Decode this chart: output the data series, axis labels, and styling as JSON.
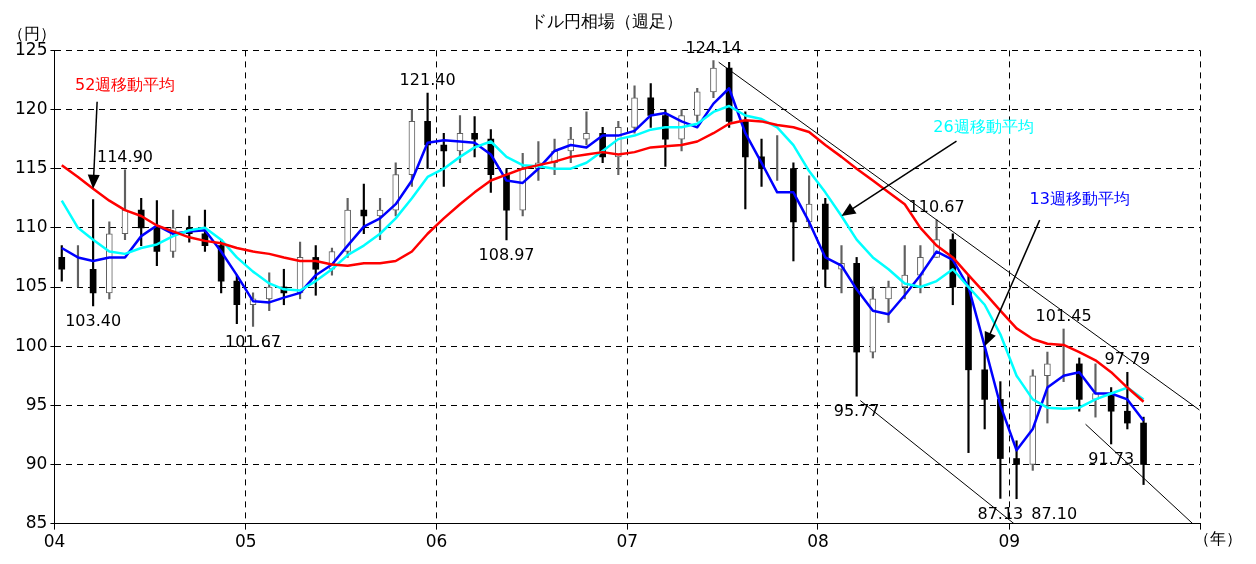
{
  "chart_data": {
    "type": "candlestick",
    "title": "ドル円相場（週足）",
    "ylabel": "（円）",
    "xlabel": "（年）",
    "x": [
      "2004-01-15",
      "2004-02-15",
      "2004-03-15",
      "2004-04-15",
      "2004-05-15",
      "2004-06-15",
      "2004-07-15",
      "2004-08-15",
      "2004-09-15",
      "2004-10-15",
      "2004-11-15",
      "2004-12-15",
      "2005-01-15",
      "2005-02-15",
      "2005-03-15",
      "2005-04-15",
      "2005-05-15",
      "2005-06-15",
      "2005-07-15",
      "2005-08-15",
      "2005-09-15",
      "2005-10-15",
      "2005-11-15",
      "2005-12-15",
      "2006-01-15",
      "2006-02-15",
      "2006-03-15",
      "2006-04-15",
      "2006-05-15",
      "2006-06-15",
      "2006-07-15",
      "2006-08-15",
      "2006-09-15",
      "2006-10-15",
      "2006-11-15",
      "2006-12-15",
      "2007-01-15",
      "2007-02-15",
      "2007-03-15",
      "2007-04-15",
      "2007-05-15",
      "2007-06-15",
      "2007-07-15",
      "2007-08-15",
      "2007-09-15",
      "2007-10-15",
      "2007-11-15",
      "2007-12-15",
      "2008-01-15",
      "2008-02-15",
      "2008-03-15",
      "2008-04-15",
      "2008-05-15",
      "2008-06-15",
      "2008-07-15",
      "2008-08-15",
      "2008-09-15",
      "2008-10-15",
      "2008-11-15",
      "2008-12-15",
      "2009-01-15",
      "2009-02-15",
      "2009-03-15",
      "2009-04-15",
      "2009-05-15",
      "2009-06-15",
      "2009-07-15",
      "2009-08-15",
      "2009-09-15"
    ],
    "ohlc": [
      [
        107.5,
        108.5,
        105.5,
        106.5
      ],
      [
        106.5,
        108.5,
        105,
        106.5
      ],
      [
        106.5,
        112.4,
        103.4,
        104.5
      ],
      [
        104.5,
        110.5,
        104,
        109.5
      ],
      [
        109.5,
        114.9,
        109,
        111.5
      ],
      [
        111.5,
        112.5,
        108.5,
        110
      ],
      [
        110,
        112.3,
        106.8,
        108
      ],
      [
        108,
        111.5,
        107.5,
        110
      ],
      [
        110,
        111,
        108.8,
        109.5
      ],
      [
        109.5,
        111.5,
        108,
        108.5
      ],
      [
        108.5,
        109,
        104.5,
        105.5
      ],
      [
        105.5,
        106,
        101.9,
        103.5
      ],
      [
        103.5,
        104.5,
        101.67,
        104
      ],
      [
        104,
        106.2,
        103,
        105
      ],
      [
        105,
        106.5,
        103.5,
        104.5
      ],
      [
        104.5,
        108.8,
        104,
        107.5
      ],
      [
        107.5,
        108.5,
        104.3,
        106.5
      ],
      [
        106.5,
        108.3,
        106,
        108
      ],
      [
        108,
        112.5,
        107.5,
        111.5
      ],
      [
        111.5,
        113.7,
        109.5,
        111
      ],
      [
        111,
        112.5,
        109,
        111.5
      ],
      [
        111.5,
        115.5,
        111,
        114.5
      ],
      [
        114.5,
        120,
        113.5,
        119
      ],
      [
        119,
        121.4,
        115,
        117
      ],
      [
        117,
        118,
        113.5,
        116.5
      ],
      [
        116.5,
        119.5,
        115.5,
        118
      ],
      [
        118,
        119.4,
        116,
        117.5
      ],
      [
        117.5,
        118.3,
        113,
        114.5
      ],
      [
        114.5,
        115,
        108.97,
        111.5
      ],
      [
        111.5,
        116.3,
        111,
        115
      ],
      [
        115,
        117.3,
        114,
        115.5
      ],
      [
        115.5,
        117.5,
        114.5,
        116.5
      ],
      [
        116.5,
        118.5,
        115.5,
        117.5
      ],
      [
        117.5,
        119.8,
        117,
        118
      ],
      [
        118,
        118.5,
        115.5,
        116
      ],
      [
        116,
        119,
        114.5,
        118.5
      ],
      [
        118.5,
        122,
        118,
        121
      ],
      [
        121,
        122.2,
        118.5,
        119.5
      ],
      [
        119.5,
        120,
        115.2,
        117.5
      ],
      [
        117.5,
        120,
        116.5,
        119.5
      ],
      [
        119.5,
        121.8,
        119,
        121.5
      ],
      [
        121.5,
        124.14,
        121,
        123.5
      ],
      [
        123.5,
        124,
        118.5,
        119
      ],
      [
        119,
        119.8,
        111.6,
        116
      ],
      [
        116,
        117.5,
        113.5,
        115
      ],
      [
        115,
        117.8,
        114,
        115
      ],
      [
        115,
        115.5,
        107.2,
        110.5
      ],
      [
        110.5,
        114.4,
        110,
        112
      ],
      [
        112,
        112.5,
        105,
        106.5
      ],
      [
        106.5,
        108.5,
        104.5,
        107
      ],
      [
        107,
        107.5,
        95.77,
        99.5
      ],
      [
        99.5,
        105,
        99,
        104
      ],
      [
        104,
        105.5,
        102,
        105
      ],
      [
        105,
        108.5,
        104,
        106
      ],
      [
        106,
        108.5,
        104.5,
        107.5
      ],
      [
        107.5,
        110.67,
        107.5,
        109
      ],
      [
        109,
        109.5,
        103.5,
        105
      ],
      [
        105,
        106,
        91,
        98
      ],
      [
        98,
        100,
        93,
        95.5
      ],
      [
        95.5,
        97,
        87.13,
        90.5
      ],
      [
        90.5,
        92,
        87.1,
        90
      ],
      [
        90,
        98,
        89.5,
        97.5
      ],
      [
        97.5,
        99.5,
        93.5,
        98.5
      ],
      [
        98.5,
        101.45,
        97,
        98.5
      ],
      [
        98.5,
        99,
        94.5,
        95.5
      ],
      [
        95.5,
        98.5,
        94,
        96
      ],
      [
        96,
        96.5,
        91.73,
        94.5
      ],
      [
        94.5,
        97.79,
        93,
        93.5
      ],
      [
        93.5,
        94,
        88.3,
        90
      ]
    ],
    "series": [
      {
        "type": "line",
        "name": "52週移動平均",
        "color": "#ff0000",
        "values": [
          115.3,
          114.3,
          113.3,
          112.3,
          111.5,
          111,
          110.2,
          109.7,
          109.2,
          108.9,
          108.7,
          108.3,
          108,
          107.8,
          107.5,
          107.2,
          107.2,
          106.9,
          106.8,
          107,
          107,
          107.2,
          108,
          109.5,
          110.8,
          112,
          113,
          114,
          114.5,
          115,
          115.3,
          115.6,
          116,
          116.2,
          116.4,
          116.2,
          116.4,
          116.8,
          116.9,
          117,
          117.3,
          118,
          118.8,
          119.1,
          119,
          118.7,
          118.5,
          118.1,
          117,
          116,
          115,
          114,
          113,
          112,
          110,
          108.5,
          107.5,
          106,
          104.5,
          103,
          101.5,
          100.6,
          100.2,
          100.1,
          99.5,
          98.8,
          97.8,
          96.5,
          95.3
        ]
      },
      {
        "type": "line",
        "name": "26週移動平均",
        "color": "#00ffff",
        "values": [
          112.3,
          110,
          109,
          108,
          107.8,
          108.3,
          108.6,
          109.3,
          109.8,
          110,
          109,
          107.5,
          106.3,
          105.3,
          104.8,
          104.7,
          105.5,
          106.5,
          107.7,
          108.5,
          109.5,
          110.8,
          112.5,
          114.3,
          115,
          116,
          116.8,
          117.3,
          116,
          115.3,
          115.2,
          115,
          115,
          115.5,
          116.5,
          117.5,
          117.8,
          118.3,
          118.5,
          118.5,
          118.8,
          119.8,
          120.3,
          119.5,
          119.2,
          118.5,
          117,
          114.8,
          113,
          111,
          109,
          107.5,
          106.5,
          105.3,
          105,
          105.5,
          106.5,
          105,
          103.5,
          101,
          97.5,
          95.5,
          94.8,
          94.7,
          94.8,
          95.5,
          96,
          96.5,
          95.5
        ]
      },
      {
        "type": "line",
        "name": "13週移動平均",
        "color": "#0000ff",
        "values": [
          108.3,
          107.5,
          107.2,
          107.5,
          107.5,
          109.3,
          110.2,
          109.5,
          109.7,
          109.8,
          108,
          106,
          103.8,
          103.7,
          104.1,
          104.5,
          106,
          106.9,
          108.5,
          110.1,
          110.8,
          112,
          114,
          117.2,
          117.4,
          117.3,
          117.2,
          116.2,
          114,
          113.8,
          115,
          116.5,
          117,
          116.8,
          117.8,
          117.8,
          118.2,
          119.5,
          119.7,
          119,
          118.5,
          120.5,
          121.8,
          118,
          115.5,
          113,
          113,
          110.5,
          107.5,
          106.8,
          104.8,
          103,
          102.7,
          104.3,
          106,
          108,
          107.3,
          105,
          100,
          95,
          91.2,
          93,
          96.5,
          97.5,
          97.8,
          96,
          96,
          95.5,
          93.7
        ]
      },
      {
        "type": "line",
        "color": "#000000",
        "x": [
          "2007-06-25",
          "2009-12-31"
        ],
        "values": [
          124,
          94.6
        ]
      },
      {
        "type": "line",
        "color": "#000000",
        "x": [
          "2008-03-22",
          "2009-01-10"
        ],
        "values": [
          95.4,
          85
        ]
      },
      {
        "type": "line",
        "color": "#000000",
        "x": [
          "2009-05-27",
          "2009-12-18"
        ],
        "values": [
          93.4,
          85
        ]
      }
    ],
    "annotations": [
      {
        "text": "114.90",
        "x": "2004-05-15",
        "y": 114.9
      },
      {
        "text": "103.40",
        "x": "2004-03-15",
        "y": 103.4
      },
      {
        "text": "101.67",
        "x": "2005-01-15",
        "y": 101.67
      },
      {
        "text": "121.40",
        "x": "2005-12-15",
        "y": 121.4
      },
      {
        "text": "108.97",
        "x": "2006-05-15",
        "y": 108.97
      },
      {
        "text": "124.14",
        "x": "2007-06-15",
        "y": 124.14
      },
      {
        "text": "95.77",
        "x": "2008-03-15",
        "y": 95.77
      },
      {
        "text": "110.67",
        "x": "2008-08-15",
        "y": 110.67
      },
      {
        "text": "87.13",
        "x": "2008-12-15",
        "y": 87.13
      },
      {
        "text": "87.10",
        "x": "2009-01-15",
        "y": 87.1
      },
      {
        "text": "101.45",
        "x": "2009-04-15",
        "y": 101.45
      },
      {
        "text": "91.73",
        "x": "2009-07-15",
        "y": 91.73
      },
      {
        "text": "97.79",
        "x": "2009-08-15",
        "y": 97.79
      }
    ],
    "xlim": [
      "2004-01-01",
      "2010-01-01"
    ],
    "xticks": [
      {
        "value": "2004-01-01",
        "label": "04"
      },
      {
        "value": "2005-01-01",
        "label": "05"
      },
      {
        "value": "2006-01-01",
        "label": "06"
      },
      {
        "value": "2007-01-01",
        "label": "07"
      },
      {
        "value": "2008-01-01",
        "label": "08"
      },
      {
        "value": "2009-01-01",
        "label": "09"
      },
      {
        "value": "2010-01-01",
        "label": null
      }
    ],
    "ylim": [
      85,
      125
    ],
    "yticks": [
      85,
      90,
      95,
      100,
      105,
      110,
      115,
      120,
      125
    ],
    "grid": true,
    "legend": false
  }
}
